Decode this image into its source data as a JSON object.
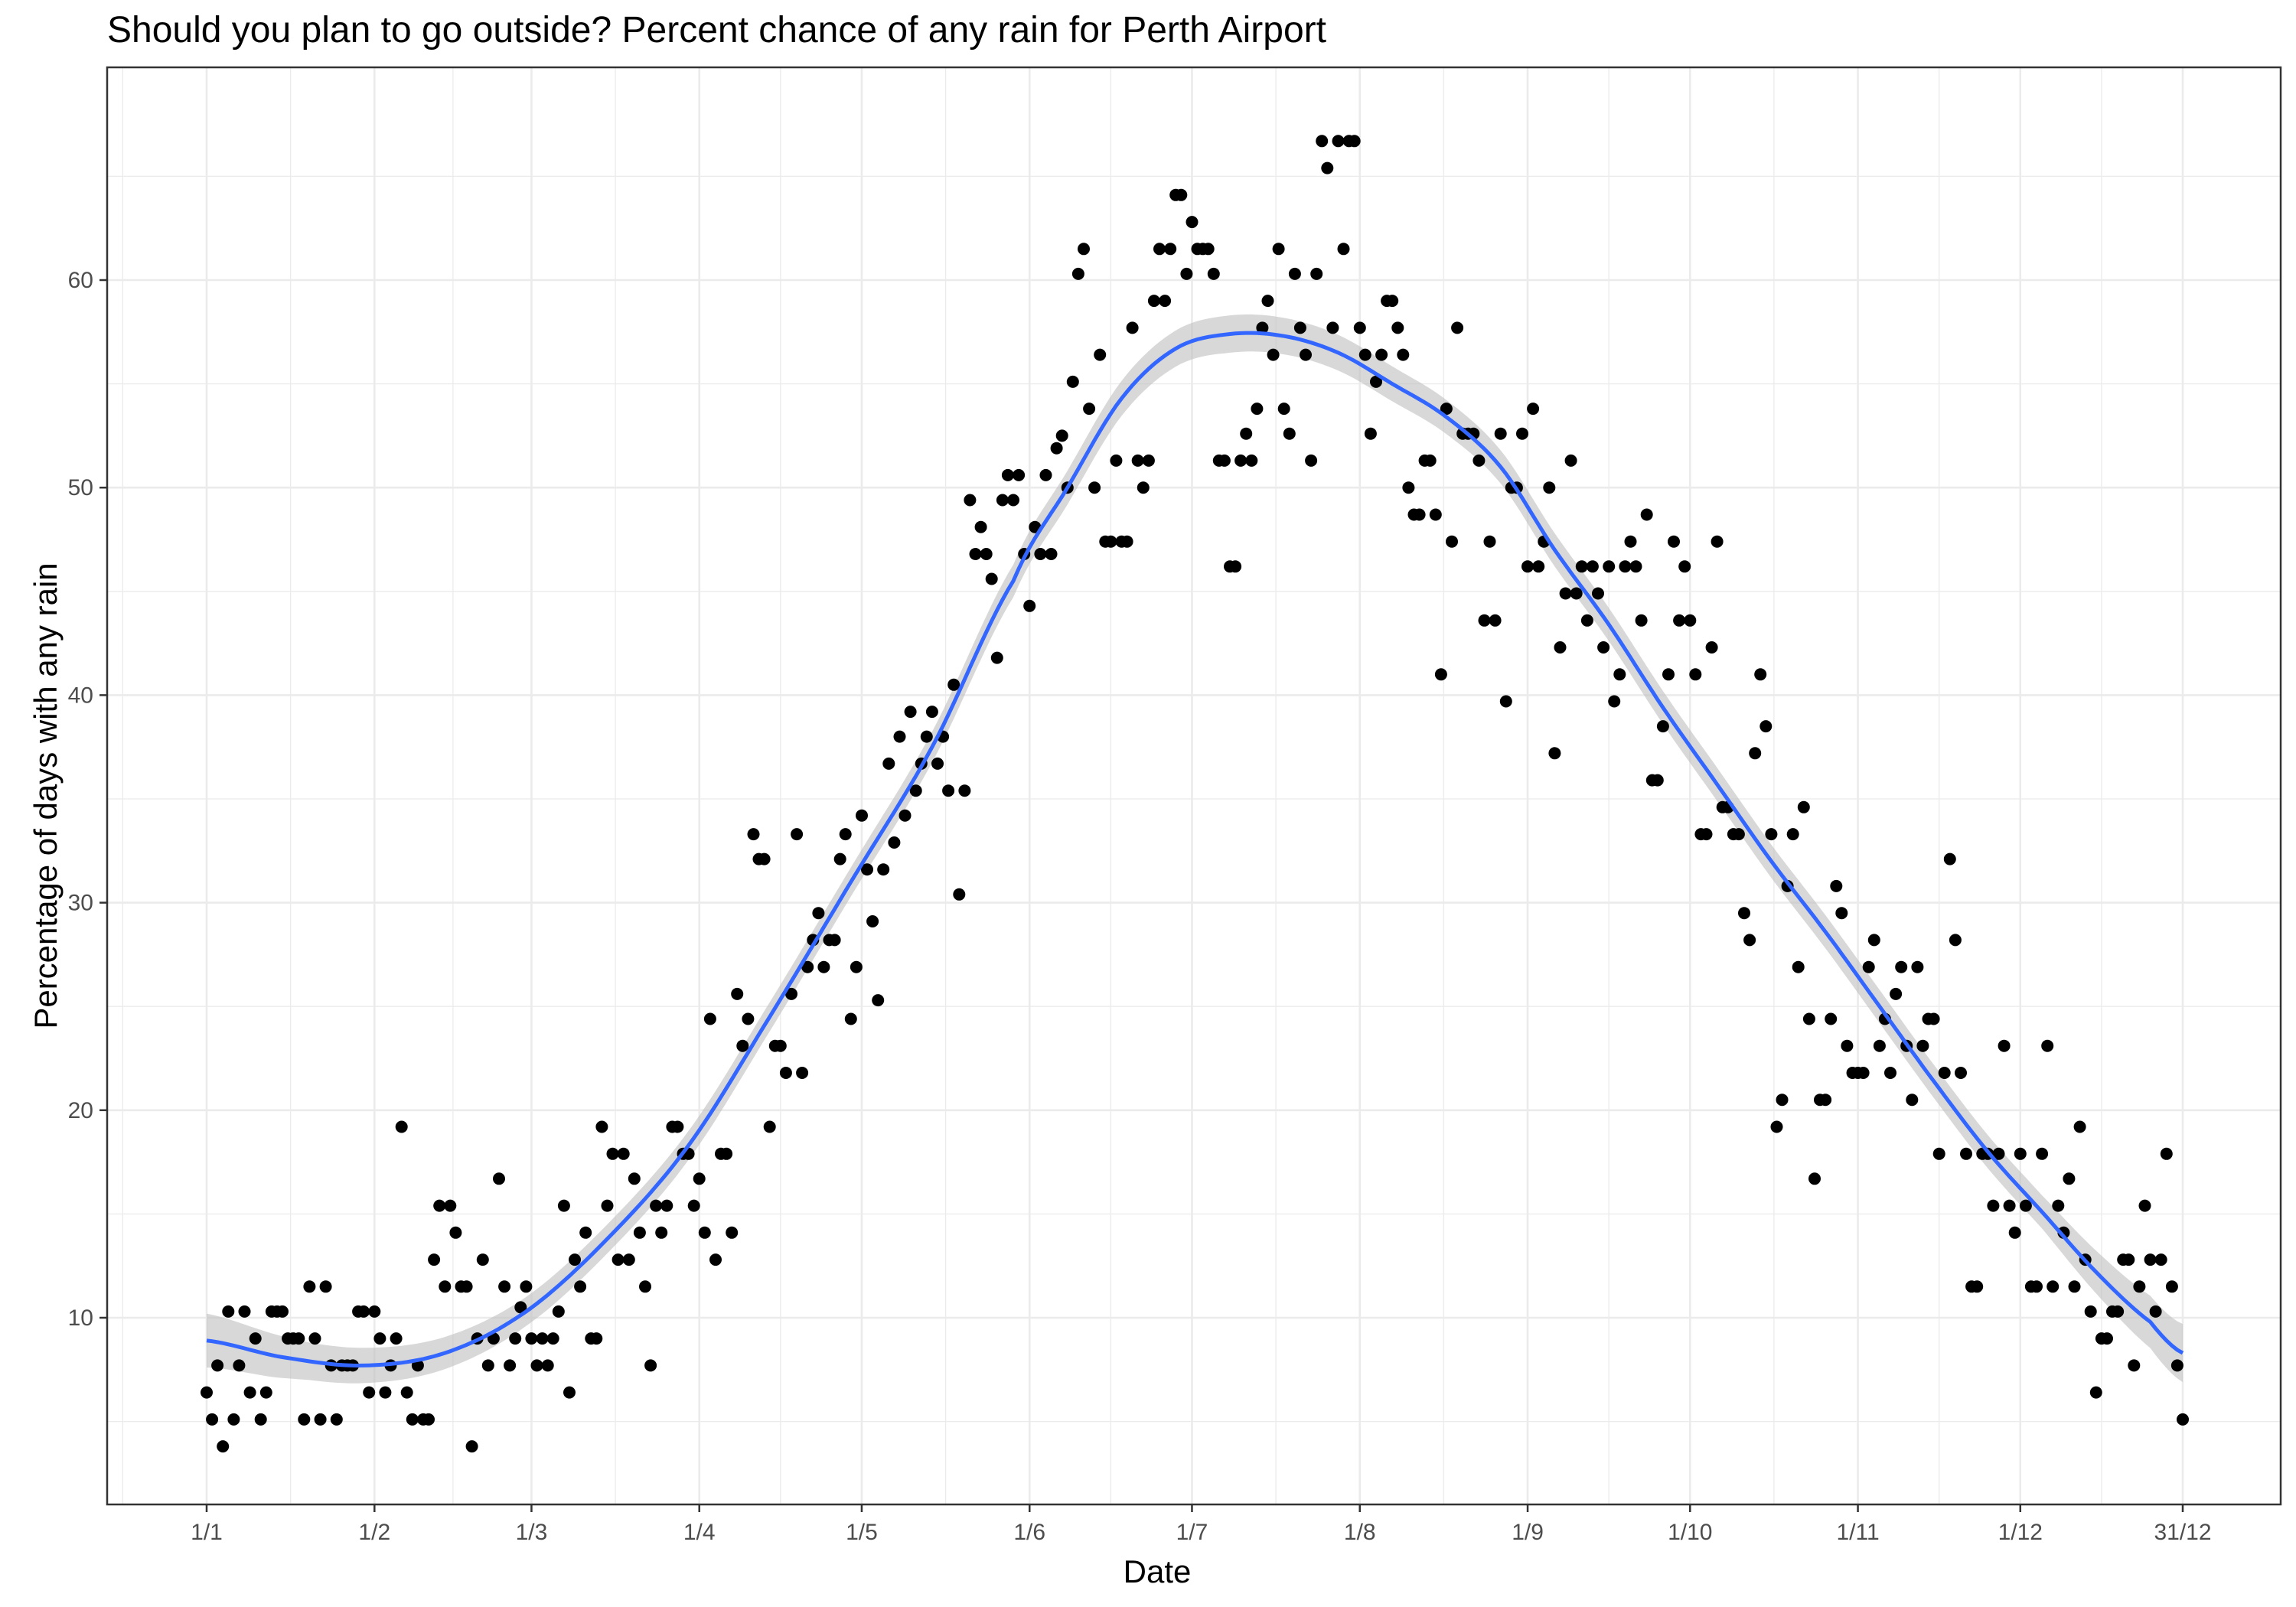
{
  "chart_data": {
    "type": "scatter",
    "title": "Should you plan to go outside? Percent chance of any rain for Perth Airport",
    "xlabel": "Date",
    "ylabel": "Percentage of days with any rain",
    "xlim": [
      1,
      366
    ],
    "ylim": [
      0,
      70
    ],
    "x_ticks": [
      {
        "label": "1/1",
        "day": 1
      },
      {
        "label": "1/2",
        "day": 32
      },
      {
        "label": "1/3",
        "day": 61
      },
      {
        "label": "1/4",
        "day": 92
      },
      {
        "label": "1/5",
        "day": 122
      },
      {
        "label": "1/6",
        "day": 153
      },
      {
        "label": "1/7",
        "day": 183
      },
      {
        "label": "1/8",
        "day": 214
      },
      {
        "label": "1/9",
        "day": 245
      },
      {
        "label": "1/10",
        "day": 275
      },
      {
        "label": "1/11",
        "day": 306
      },
      {
        "label": "1/12",
        "day": 336
      },
      {
        "label": "31/12",
        "day": 366
      }
    ],
    "y_ticks": [
      10,
      20,
      30,
      40,
      50,
      60
    ],
    "grid": true,
    "colors": {
      "points": "#000000",
      "smooth_line": "#3366FF",
      "confidence_band": "#BEBEBE",
      "grid_major": "#EBEBEB",
      "panel_border": "#333333"
    },
    "points": [
      [
        1,
        6.4
      ],
      [
        2,
        5.1
      ],
      [
        3,
        7.7
      ],
      [
        4,
        3.8
      ],
      [
        5,
        10.3
      ],
      [
        6,
        5.1
      ],
      [
        7,
        7.7
      ],
      [
        8,
        10.3
      ],
      [
        9,
        6.4
      ],
      [
        10,
        9.0
      ],
      [
        11,
        5.1
      ],
      [
        12,
        6.4
      ],
      [
        13,
        10.3
      ],
      [
        14,
        10.3
      ],
      [
        15,
        10.3
      ],
      [
        16,
        9.0
      ],
      [
        17,
        9.0
      ],
      [
        18,
        9.0
      ],
      [
        19,
        5.1
      ],
      [
        20,
        11.5
      ],
      [
        21,
        9.0
      ],
      [
        22,
        5.1
      ],
      [
        23,
        11.5
      ],
      [
        24,
        7.7
      ],
      [
        25,
        5.1
      ],
      [
        26,
        7.7
      ],
      [
        27,
        7.7
      ],
      [
        28,
        7.7
      ],
      [
        29,
        10.3
      ],
      [
        30,
        10.3
      ],
      [
        31,
        6.4
      ],
      [
        32,
        10.3
      ],
      [
        33,
        9.0
      ],
      [
        34,
        6.4
      ],
      [
        35,
        7.7
      ],
      [
        36,
        9.0
      ],
      [
        37,
        19.2
      ],
      [
        38,
        6.4
      ],
      [
        39,
        5.1
      ],
      [
        40,
        7.7
      ],
      [
        41,
        5.1
      ],
      [
        42,
        5.1
      ],
      [
        43,
        12.8
      ],
      [
        44,
        15.4
      ],
      [
        45,
        11.5
      ],
      [
        46,
        15.4
      ],
      [
        47,
        14.1
      ],
      [
        48,
        11.5
      ],
      [
        49,
        11.5
      ],
      [
        50,
        3.8
      ],
      [
        51,
        9.0
      ],
      [
        52,
        12.8
      ],
      [
        53,
        7.7
      ],
      [
        54,
        9.0
      ],
      [
        55,
        16.7
      ],
      [
        56,
        11.5
      ],
      [
        57,
        7.7
      ],
      [
        58,
        9.0
      ],
      [
        59,
        10.5
      ],
      [
        60,
        11.5
      ],
      [
        61,
        9.0
      ],
      [
        62,
        7.7
      ],
      [
        63,
        9.0
      ],
      [
        64,
        7.7
      ],
      [
        65,
        9.0
      ],
      [
        66,
        10.3
      ],
      [
        67,
        15.4
      ],
      [
        68,
        6.4
      ],
      [
        69,
        12.8
      ],
      [
        70,
        11.5
      ],
      [
        71,
        14.1
      ],
      [
        72,
        9.0
      ],
      [
        73,
        9.0
      ],
      [
        74,
        19.2
      ],
      [
        75,
        15.4
      ],
      [
        76,
        17.9
      ],
      [
        77,
        12.8
      ],
      [
        78,
        17.9
      ],
      [
        79,
        12.8
      ],
      [
        80,
        16.7
      ],
      [
        81,
        14.1
      ],
      [
        82,
        11.5
      ],
      [
        83,
        7.7
      ],
      [
        84,
        15.4
      ],
      [
        85,
        14.1
      ],
      [
        86,
        15.4
      ],
      [
        87,
        19.2
      ],
      [
        88,
        19.2
      ],
      [
        89,
        17.9
      ],
      [
        90,
        17.9
      ],
      [
        91,
        15.4
      ],
      [
        92,
        16.7
      ],
      [
        93,
        14.1
      ],
      [
        94,
        24.4
      ],
      [
        95,
        12.8
      ],
      [
        96,
        17.9
      ],
      [
        97,
        17.9
      ],
      [
        98,
        14.1
      ],
      [
        99,
        25.6
      ],
      [
        100,
        23.1
      ],
      [
        101,
        24.4
      ],
      [
        102,
        33.3
      ],
      [
        103,
        32.1
      ],
      [
        104,
        32.1
      ],
      [
        105,
        19.2
      ],
      [
        106,
        23.1
      ],
      [
        107,
        23.1
      ],
      [
        108,
        21.8
      ],
      [
        109,
        25.6
      ],
      [
        110,
        33.3
      ],
      [
        111,
        21.8
      ],
      [
        112,
        26.9
      ],
      [
        113,
        28.2
      ],
      [
        114,
        29.5
      ],
      [
        115,
        26.9
      ],
      [
        116,
        28.2
      ],
      [
        117,
        28.2
      ],
      [
        118,
        32.1
      ],
      [
        119,
        33.3
      ],
      [
        120,
        24.4
      ],
      [
        121,
        26.9
      ],
      [
        122,
        34.2
      ],
      [
        123,
        31.6
      ],
      [
        124,
        29.1
      ],
      [
        125,
        25.3
      ],
      [
        126,
        31.6
      ],
      [
        127,
        36.7
      ],
      [
        128,
        32.9
      ],
      [
        129,
        38.0
      ],
      [
        130,
        34.2
      ],
      [
        131,
        39.2
      ],
      [
        132,
        35.4
      ],
      [
        133,
        36.7
      ],
      [
        134,
        38.0
      ],
      [
        135,
        39.2
      ],
      [
        136,
        36.7
      ],
      [
        137,
        38.0
      ],
      [
        138,
        35.4
      ],
      [
        139,
        40.5
      ],
      [
        140,
        30.4
      ],
      [
        141,
        35.4
      ],
      [
        142,
        49.4
      ],
      [
        143,
        46.8
      ],
      [
        144,
        48.1
      ],
      [
        145,
        46.8
      ],
      [
        146,
        45.6
      ],
      [
        147,
        41.8
      ],
      [
        148,
        49.4
      ],
      [
        149,
        50.6
      ],
      [
        150,
        49.4
      ],
      [
        151,
        50.6
      ],
      [
        152,
        46.8
      ],
      [
        153,
        44.3
      ],
      [
        154,
        48.1
      ],
      [
        155,
        46.8
      ],
      [
        156,
        50.6
      ],
      [
        157,
        46.8
      ],
      [
        158,
        51.9
      ],
      [
        159,
        52.5
      ],
      [
        160,
        50.0
      ],
      [
        161,
        55.1
      ],
      [
        162,
        60.3
      ],
      [
        163,
        61.5
      ],
      [
        164,
        53.8
      ],
      [
        165,
        50.0
      ],
      [
        166,
        56.4
      ],
      [
        167,
        47.4
      ],
      [
        168,
        47.4
      ],
      [
        169,
        51.3
      ],
      [
        170,
        47.4
      ],
      [
        171,
        47.4
      ],
      [
        172,
        57.7
      ],
      [
        173,
        51.3
      ],
      [
        174,
        50.0
      ],
      [
        175,
        51.3
      ],
      [
        176,
        59.0
      ],
      [
        177,
        61.5
      ],
      [
        178,
        59.0
      ],
      [
        179,
        61.5
      ],
      [
        180,
        64.1
      ],
      [
        181,
        64.1
      ],
      [
        182,
        60.3
      ],
      [
        183,
        62.8
      ],
      [
        184,
        61.5
      ],
      [
        185,
        61.5
      ],
      [
        186,
        61.5
      ],
      [
        187,
        60.3
      ],
      [
        188,
        51.3
      ],
      [
        189,
        51.3
      ],
      [
        190,
        46.2
      ],
      [
        191,
        46.2
      ],
      [
        192,
        51.3
      ],
      [
        193,
        52.6
      ],
      [
        194,
        51.3
      ],
      [
        195,
        53.8
      ],
      [
        196,
        57.7
      ],
      [
        197,
        59.0
      ],
      [
        198,
        56.4
      ],
      [
        199,
        61.5
      ],
      [
        200,
        53.8
      ],
      [
        201,
        52.6
      ],
      [
        202,
        60.3
      ],
      [
        203,
        57.7
      ],
      [
        204,
        56.4
      ],
      [
        205,
        51.3
      ],
      [
        206,
        60.3
      ],
      [
        207,
        66.7
      ],
      [
        208,
        65.4
      ],
      [
        209,
        57.7
      ],
      [
        210,
        66.7
      ],
      [
        211,
        61.5
      ],
      [
        212,
        66.7
      ],
      [
        213,
        66.7
      ],
      [
        214,
        57.7
      ],
      [
        215,
        56.4
      ],
      [
        216,
        52.6
      ],
      [
        217,
        55.1
      ],
      [
        218,
        56.4
      ],
      [
        219,
        59.0
      ],
      [
        220,
        59.0
      ],
      [
        221,
        57.7
      ],
      [
        222,
        56.4
      ],
      [
        223,
        50.0
      ],
      [
        224,
        48.7
      ],
      [
        225,
        48.7
      ],
      [
        226,
        51.3
      ],
      [
        227,
        51.3
      ],
      [
        228,
        48.7
      ],
      [
        229,
        41.0
      ],
      [
        230,
        53.8
      ],
      [
        231,
        47.4
      ],
      [
        232,
        57.7
      ],
      [
        233,
        52.6
      ],
      [
        234,
        52.6
      ],
      [
        235,
        52.6
      ],
      [
        236,
        51.3
      ],
      [
        237,
        43.6
      ],
      [
        238,
        47.4
      ],
      [
        239,
        43.6
      ],
      [
        240,
        52.6
      ],
      [
        241,
        39.7
      ],
      [
        242,
        50.0
      ],
      [
        243,
        50.0
      ],
      [
        244,
        52.6
      ],
      [
        245,
        46.2
      ],
      [
        246,
        53.8
      ],
      [
        247,
        46.2
      ],
      [
        248,
        47.4
      ],
      [
        249,
        50.0
      ],
      [
        250,
        37.2
      ],
      [
        251,
        42.3
      ],
      [
        252,
        44.9
      ],
      [
        253,
        51.3
      ],
      [
        254,
        44.9
      ],
      [
        255,
        46.2
      ],
      [
        256,
        43.6
      ],
      [
        257,
        46.2
      ],
      [
        258,
        44.9
      ],
      [
        259,
        42.3
      ],
      [
        260,
        46.2
      ],
      [
        261,
        39.7
      ],
      [
        262,
        41.0
      ],
      [
        263,
        46.2
      ],
      [
        264,
        47.4
      ],
      [
        265,
        46.2
      ],
      [
        266,
        43.6
      ],
      [
        267,
        48.7
      ],
      [
        268,
        35.9
      ],
      [
        269,
        35.9
      ],
      [
        270,
        38.5
      ],
      [
        271,
        41.0
      ],
      [
        272,
        47.4
      ],
      [
        273,
        43.6
      ],
      [
        274,
        46.2
      ],
      [
        275,
        43.6
      ],
      [
        276,
        41.0
      ],
      [
        277,
        33.3
      ],
      [
        278,
        33.3
      ],
      [
        279,
        42.3
      ],
      [
        280,
        47.4
      ],
      [
        281,
        34.6
      ],
      [
        282,
        34.6
      ],
      [
        283,
        33.3
      ],
      [
        284,
        33.3
      ],
      [
        285,
        29.5
      ],
      [
        286,
        28.2
      ],
      [
        287,
        37.2
      ],
      [
        288,
        41.0
      ],
      [
        289,
        38.5
      ],
      [
        290,
        33.3
      ],
      [
        291,
        19.2
      ],
      [
        292,
        20.5
      ],
      [
        293,
        30.8
      ],
      [
        294,
        33.3
      ],
      [
        295,
        26.9
      ],
      [
        296,
        34.6
      ],
      [
        297,
        24.4
      ],
      [
        298,
        16.7
      ],
      [
        299,
        20.5
      ],
      [
        300,
        20.5
      ],
      [
        301,
        24.4
      ],
      [
        302,
        30.8
      ],
      [
        303,
        29.5
      ],
      [
        304,
        23.1
      ],
      [
        305,
        21.8
      ],
      [
        306,
        21.8
      ],
      [
        307,
        21.8
      ],
      [
        308,
        26.9
      ],
      [
        309,
        28.2
      ],
      [
        310,
        23.1
      ],
      [
        311,
        24.4
      ],
      [
        312,
        21.8
      ],
      [
        313,
        25.6
      ],
      [
        314,
        26.9
      ],
      [
        315,
        23.1
      ],
      [
        316,
        20.5
      ],
      [
        317,
        26.9
      ],
      [
        318,
        23.1
      ],
      [
        319,
        24.4
      ],
      [
        320,
        24.4
      ],
      [
        321,
        17.9
      ],
      [
        322,
        21.8
      ],
      [
        323,
        32.1
      ],
      [
        324,
        28.2
      ],
      [
        325,
        21.8
      ],
      [
        326,
        17.9
      ],
      [
        327,
        11.5
      ],
      [
        328,
        11.5
      ],
      [
        329,
        17.9
      ],
      [
        330,
        17.9
      ],
      [
        331,
        15.4
      ],
      [
        332,
        17.9
      ],
      [
        333,
        23.1
      ],
      [
        334,
        15.4
      ],
      [
        335,
        14.1
      ],
      [
        336,
        17.9
      ],
      [
        337,
        15.4
      ],
      [
        338,
        11.5
      ],
      [
        339,
        11.5
      ],
      [
        340,
        17.9
      ],
      [
        341,
        23.1
      ],
      [
        342,
        11.5
      ],
      [
        343,
        15.4
      ],
      [
        344,
        14.1
      ],
      [
        345,
        16.7
      ],
      [
        346,
        11.5
      ],
      [
        347,
        19.2
      ],
      [
        348,
        12.8
      ],
      [
        349,
        10.3
      ],
      [
        350,
        6.4
      ],
      [
        351,
        9.0
      ],
      [
        352,
        9.0
      ],
      [
        353,
        10.3
      ],
      [
        354,
        10.3
      ],
      [
        355,
        12.8
      ],
      [
        356,
        12.8
      ],
      [
        357,
        7.7
      ],
      [
        358,
        11.5
      ],
      [
        359,
        15.4
      ],
      [
        360,
        12.8
      ],
      [
        361,
        10.3
      ],
      [
        362,
        12.8
      ],
      [
        363,
        17.9
      ],
      [
        364,
        11.5
      ],
      [
        365,
        7.7
      ],
      [
        366,
        5.1
      ]
    ],
    "smooth": [
      [
        1,
        8.9
      ],
      [
        15,
        8.1
      ],
      [
        30,
        7.7
      ],
      [
        45,
        8.3
      ],
      [
        60,
        10.3
      ],
      [
        75,
        13.8
      ],
      [
        90,
        18.3
      ],
      [
        105,
        24.5
      ],
      [
        120,
        31.0
      ],
      [
        135,
        37.5
      ],
      [
        150,
        45.5
      ],
      [
        160,
        50.0
      ],
      [
        170,
        54.3
      ],
      [
        180,
        56.7
      ],
      [
        190,
        57.4
      ],
      [
        200,
        57.3
      ],
      [
        210,
        56.5
      ],
      [
        220,
        55.0
      ],
      [
        230,
        53.4
      ],
      [
        240,
        51.0
      ],
      [
        250,
        47.0
      ],
      [
        260,
        43.4
      ],
      [
        270,
        39.4
      ],
      [
        280,
        35.7
      ],
      [
        290,
        32.0
      ],
      [
        300,
        28.6
      ],
      [
        310,
        25.0
      ],
      [
        320,
        21.4
      ],
      [
        330,
        18.0
      ],
      [
        340,
        15.1
      ],
      [
        350,
        12.2
      ],
      [
        360,
        9.8
      ],
      [
        366,
        8.3
      ]
    ],
    "band_halfwidth": [
      [
        1,
        1.3
      ],
      [
        20,
        0.9
      ],
      [
        60,
        0.7
      ],
      [
        120,
        0.7
      ],
      [
        190,
        0.9
      ],
      [
        240,
        0.8
      ],
      [
        300,
        0.8
      ],
      [
        340,
        0.8
      ],
      [
        366,
        1.4
      ]
    ]
  }
}
